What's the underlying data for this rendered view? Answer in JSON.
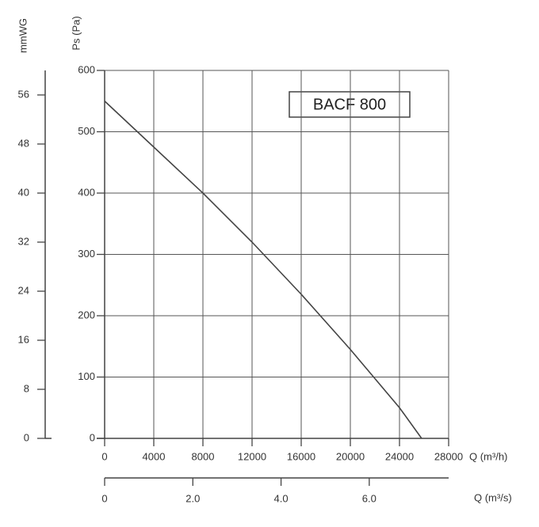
{
  "chart_data": {
    "type": "line",
    "title": "BACF 800",
    "y_label": "Ps (Pa)",
    "y2_label": "mmWG",
    "x_label": "Q (m³/h)",
    "x2_label": "Q (m³/s)",
    "xlim": [
      0,
      28000
    ],
    "xticks": [
      0,
      4000,
      8000,
      12000,
      16000,
      20000,
      24000,
      28000
    ],
    "ylim": [
      0,
      600
    ],
    "yticks": [
      0,
      100,
      200,
      300,
      400,
      500,
      600
    ],
    "y2lim": [
      0,
      60
    ],
    "y2ticks": [
      0,
      8,
      16,
      24,
      32,
      40,
      48,
      56
    ],
    "x2lim": [
      0,
      7.8
    ],
    "x2ticks": [
      0,
      {
        "value": 2,
        "label": "2.0"
      },
      {
        "value": 4,
        "label": "4.0"
      },
      {
        "value": 6,
        "label": "6.0"
      }
    ],
    "grid": true,
    "series": [
      {
        "color": "#444444",
        "x": [
          0,
          4000,
          8000,
          12000,
          16000,
          20000,
          24000,
          25800
        ],
        "values": [
          550,
          475,
          400,
          320,
          235,
          145,
          50,
          0
        ]
      }
    ]
  }
}
